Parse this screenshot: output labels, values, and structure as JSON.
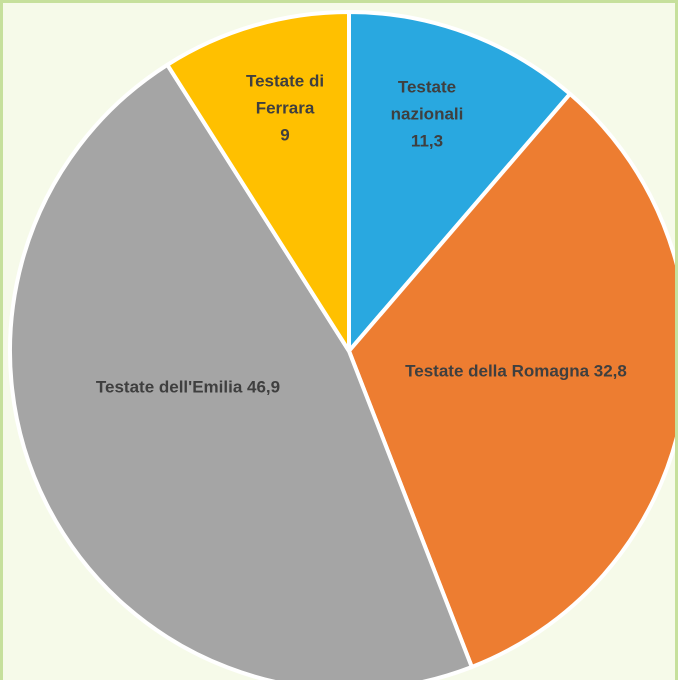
{
  "chart_data": {
    "type": "pie",
    "categories": [
      "Testate nazionali",
      "Testate della Romagna",
      "Testate dell'Emilia",
      "Testate di Ferrara"
    ],
    "values": [
      11.3,
      32.8,
      46.9,
      9
    ],
    "value_labels": [
      "11,3",
      "32,8",
      "46,9",
      "9"
    ],
    "colors": [
      "#29a8e0",
      "#ed7d31",
      "#a5a5a5",
      "#ffc000"
    ]
  }
}
